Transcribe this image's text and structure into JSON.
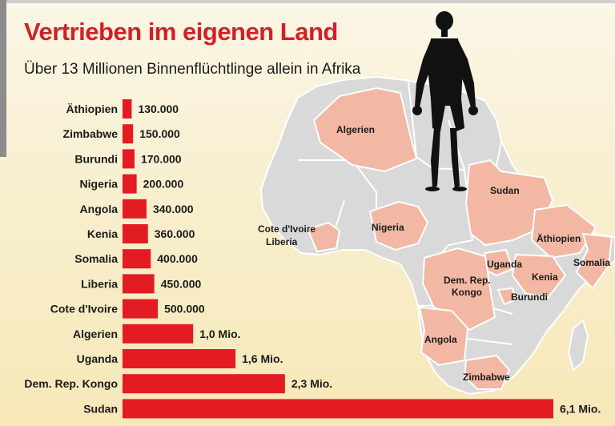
{
  "header": {
    "title": "Vertrieben im eigenen Land",
    "subtitle": "Über 13 Millionen Binnenflüchtlinge allein in Afrika"
  },
  "colors": {
    "accent": "#d41f26",
    "bar": "#e31b23",
    "map_land": "#d9d9d9",
    "map_highlight": "#f2b8a4",
    "background": "#f7ecc4"
  },
  "chart_data": {
    "type": "bar",
    "orientation": "horizontal",
    "categories": [
      "Äthiopien",
      "Zimbabwe",
      "Burundi",
      "Nigeria",
      "Angola",
      "Kenia",
      "Somalia",
      "Liberia",
      "Cote d'Ivoire",
      "Algerien",
      "Uganda",
      "Dem. Rep. Kongo",
      "Sudan"
    ],
    "values": [
      130000,
      150000,
      170000,
      200000,
      340000,
      360000,
      400000,
      450000,
      500000,
      1000000,
      1600000,
      2300000,
      6100000
    ],
    "value_labels": [
      "130.000",
      "150.000",
      "170.000",
      "200.000",
      "340.000",
      "360.000",
      "400.000",
      "450.000",
      "500.000",
      "1,0 Mio.",
      "1,6 Mio.",
      "2,3 Mio.",
      "6,1 Mio."
    ],
    "title": "Vertrieben im eigenen Land",
    "subtitle": "Über 13 Millionen Binnenflüchtlinge allein in Afrika",
    "grid": false,
    "legend": "none"
  },
  "map": {
    "labels": {
      "algerien": "Algerien",
      "sudan": "Sudan",
      "nigeria": "Nigeria",
      "ivory_coast": "Cote d'Ivoire",
      "liberia": "Liberia",
      "ethiopia": "Äthiopien",
      "somalia": "Somalia",
      "uganda": "Uganda",
      "kenia": "Kenia",
      "drc_1": "Dem. Rep.",
      "drc_2": "Kongo",
      "burundi": "Burundi",
      "angola": "Angola",
      "zimbabwe": "Zimbabwe"
    }
  }
}
